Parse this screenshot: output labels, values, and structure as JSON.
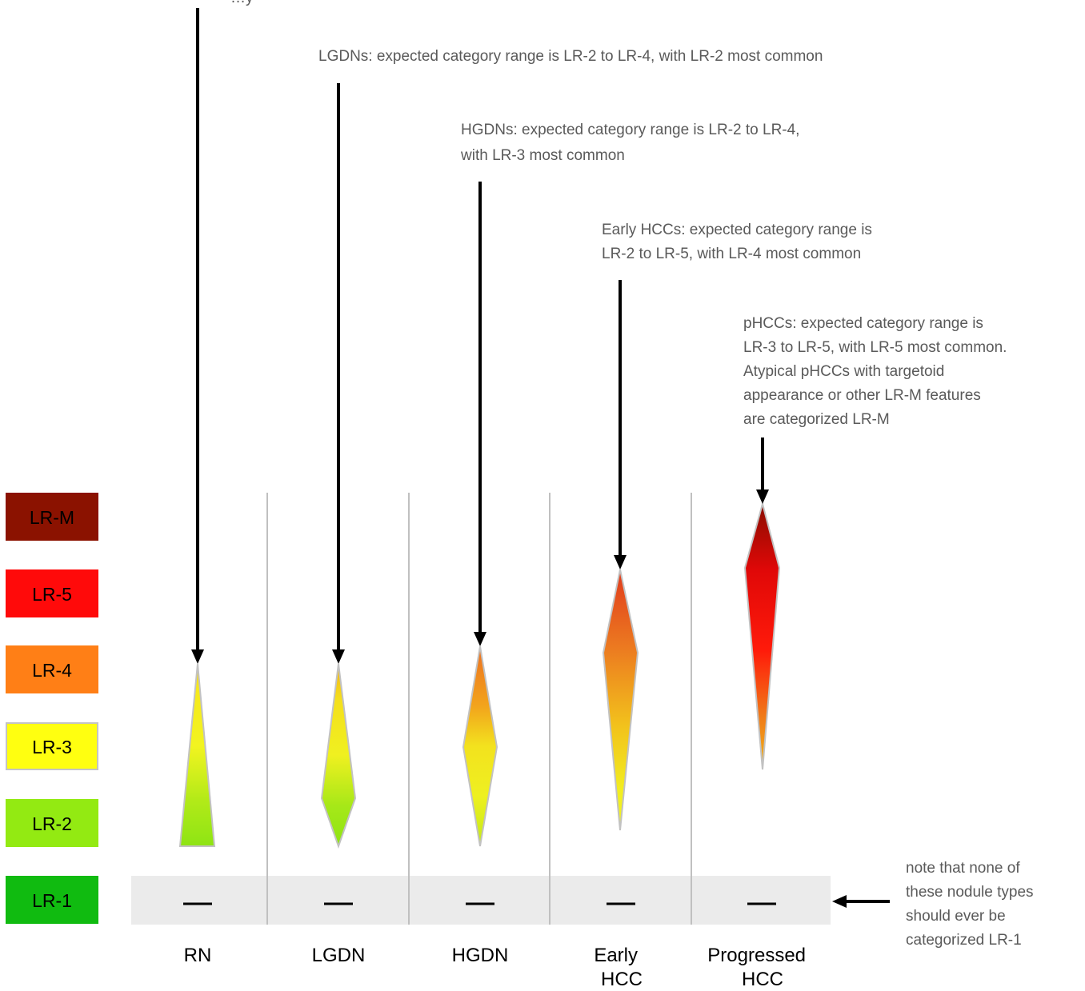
{
  "categories": [
    {
      "label": "LR-M",
      "fill": "#8b1200",
      "text_color": "#ffffff"
    },
    {
      "label": "LR-5",
      "fill": "#ff0a0a",
      "text_color": "#000000"
    },
    {
      "label": "LR-4",
      "fill": "#ff7f16",
      "text_color": "#000000"
    },
    {
      "label": "LR-3",
      "fill": "#ffff10",
      "text_color": "#000000"
    },
    {
      "label": "LR-2",
      "fill": "#93ea12",
      "text_color": "#000000"
    },
    {
      "label": "LR-1",
      "fill": "#10bb10",
      "text_color": "#000000"
    }
  ],
  "columns": [
    {
      "label_lines": [
        "RN"
      ]
    },
    {
      "label_lines": [
        "LGDN"
      ]
    },
    {
      "label_lines": [
        "HGDN"
      ]
    },
    {
      "label_lines": [
        "Early",
        "HCC"
      ]
    },
    {
      "label_lines": [
        "Progressed",
        "HCC"
      ]
    }
  ],
  "annotations": {
    "rn": [
      "…y"
    ],
    "lgdn": [
      "LGDNs: expected category range is LR-2 to LR-4, with LR-2 most common"
    ],
    "hgdn": [
      "HGDNs: expected category range is LR-2 to LR-4,",
      "with LR-3 most common"
    ],
    "early_hcc": [
      "Early HCCs: expected category range is",
      "LR-2 to LR-5, with LR-4 most common"
    ],
    "phcc": [
      "pHCCs: expected category range is",
      "LR-3 to LR-5, with LR-5 most common.",
      "Atypical pHCCs  with targetoid",
      "appearance or other LR-M features",
      "are categorized LR-M"
    ],
    "lr1_note": [
      "note that none of",
      "these nodule types",
      "should ever be",
      "categorized LR-1"
    ]
  },
  "lr1_dash": "—"
}
